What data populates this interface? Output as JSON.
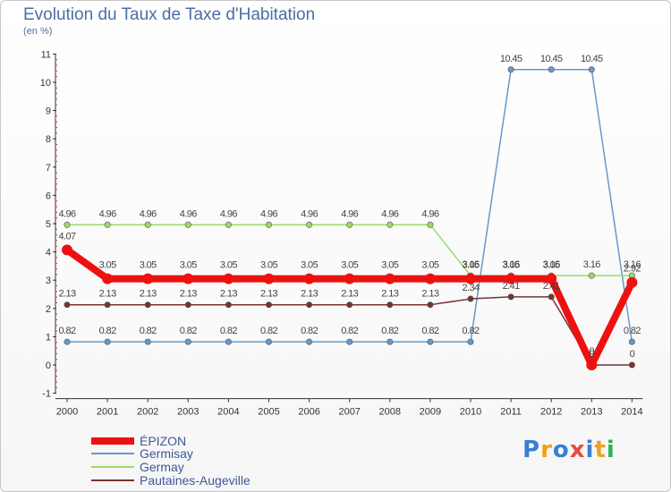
{
  "title": "Evolution du Taux de Taxe d'Habitation",
  "unit_label": "(en %)",
  "logo": {
    "text": "Proxiti",
    "letters": [
      {
        "ch": "P",
        "color": "#3a7fd0"
      },
      {
        "ch": "r",
        "color": "#f0a020"
      },
      {
        "ch": "o",
        "color": "#3a7fd0"
      },
      {
        "ch": "x",
        "color": "#e74c3c"
      },
      {
        "ch": "i",
        "color": "#3a7fd0"
      },
      {
        "ch": "t",
        "color": "#f0a020"
      },
      {
        "ch": "i",
        "color": "#2db34a"
      }
    ]
  },
  "chart_data": {
    "type": "line",
    "x": [
      2000,
      2001,
      2002,
      2003,
      2004,
      2005,
      2006,
      2007,
      2008,
      2009,
      2010,
      2011,
      2012,
      2013,
      2014
    ],
    "xlabel": "",
    "ylabel": "",
    "ylim": [
      -1,
      11
    ],
    "yticks": [
      -1,
      0,
      1,
      2,
      3,
      4,
      5,
      6,
      7,
      8,
      9,
      10,
      11
    ],
    "grid": false,
    "legend_position": "bottom-left",
    "series": [
      {
        "name": "ÉPIZON",
        "color": "#ee1111",
        "values": [
          4.07,
          3.05,
          3.05,
          3.05,
          3.05,
          3.05,
          3.05,
          3.05,
          3.05,
          3.05,
          3.05,
          3.05,
          3.05,
          0,
          2.92
        ],
        "labels": [
          "4.07",
          "3.05",
          "3.05",
          "3.05",
          "3.05",
          "3.05",
          "3.05",
          "3.05",
          "3.05",
          "3.05",
          "3.05",
          "3.05",
          "3.05",
          "0",
          "2.92"
        ]
      },
      {
        "name": "Germisay",
        "color": "#6699cc",
        "values": [
          0.82,
          0.82,
          0.82,
          0.82,
          0.82,
          0.82,
          0.82,
          0.82,
          0.82,
          0.82,
          0.82,
          10.45,
          10.45,
          10.45,
          0.82
        ],
        "labels": [
          "0.82",
          "0.82",
          "0.82",
          "0.82",
          "0.82",
          "0.82",
          "0.82",
          "0.82",
          "0.82",
          "0.82",
          "0.82",
          "10.45",
          "10.45",
          "10.45",
          "0.82"
        ]
      },
      {
        "name": "Germay",
        "color": "#99dd66",
        "values": [
          4.96,
          4.96,
          4.96,
          4.96,
          4.96,
          4.96,
          4.96,
          4.96,
          4.96,
          4.96,
          3.16,
          3.16,
          3.16,
          3.16,
          3.16
        ],
        "labels": [
          "4.96",
          "4.96",
          "4.96",
          "4.96",
          "4.96",
          "4.96",
          "4.96",
          "4.96",
          "4.96",
          "4.96",
          "3.16",
          "3.16",
          "3.16",
          "3.16",
          "3.16"
        ]
      },
      {
        "name": "Pautaines-Augeville",
        "color": "#773333",
        "values": [
          2.13,
          2.13,
          2.13,
          2.13,
          2.13,
          2.13,
          2.13,
          2.13,
          2.13,
          2.13,
          2.34,
          2.41,
          2.41,
          0,
          0
        ],
        "labels": [
          "2.13",
          "2.13",
          "2.13",
          "2.13",
          "2.13",
          "2.13",
          "2.13",
          "2.13",
          "2.13",
          "2.13",
          "2.34",
          "2.41",
          "2.41",
          "0",
          "0"
        ]
      }
    ]
  }
}
